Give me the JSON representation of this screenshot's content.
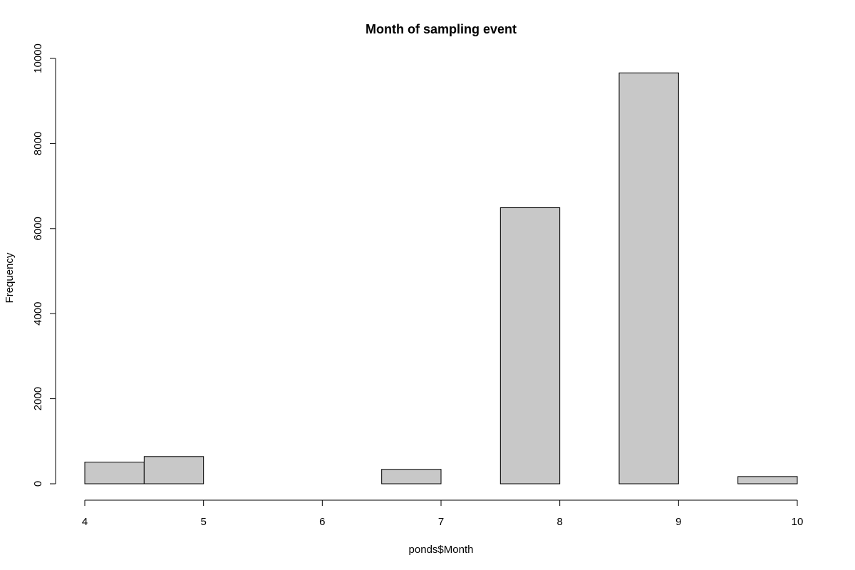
{
  "chart_data": {
    "type": "bar",
    "title": "Month of sampling event",
    "xlabel": "ponds$Month",
    "ylabel": "Frequency",
    "bins": [
      {
        "start": 4.0,
        "end": 4.5,
        "value": 510
      },
      {
        "start": 4.5,
        "end": 5.0,
        "value": 640
      },
      {
        "start": 5.0,
        "end": 5.5,
        "value": 0
      },
      {
        "start": 5.5,
        "end": 6.0,
        "value": 0
      },
      {
        "start": 6.0,
        "end": 6.5,
        "value": 0
      },
      {
        "start": 6.5,
        "end": 7.0,
        "value": 340
      },
      {
        "start": 7.0,
        "end": 7.5,
        "value": 0
      },
      {
        "start": 7.5,
        "end": 8.0,
        "value": 6490
      },
      {
        "start": 8.0,
        "end": 8.5,
        "value": 0
      },
      {
        "start": 8.5,
        "end": 9.0,
        "value": 9660
      },
      {
        "start": 9.0,
        "end": 9.5,
        "value": 0
      },
      {
        "start": 9.5,
        "end": 10.0,
        "value": 170
      }
    ],
    "xlim": [
      4,
      10
    ],
    "ylim": [
      0,
      10000
    ],
    "x_ticks": [
      "4",
      "5",
      "6",
      "7",
      "8",
      "9",
      "10"
    ],
    "y_ticks": [
      "0",
      "2000",
      "4000",
      "6000",
      "8000",
      "10000"
    ],
    "grid": false,
    "bar_color": "#c8c8c8",
    "edge_color": "#000000"
  }
}
